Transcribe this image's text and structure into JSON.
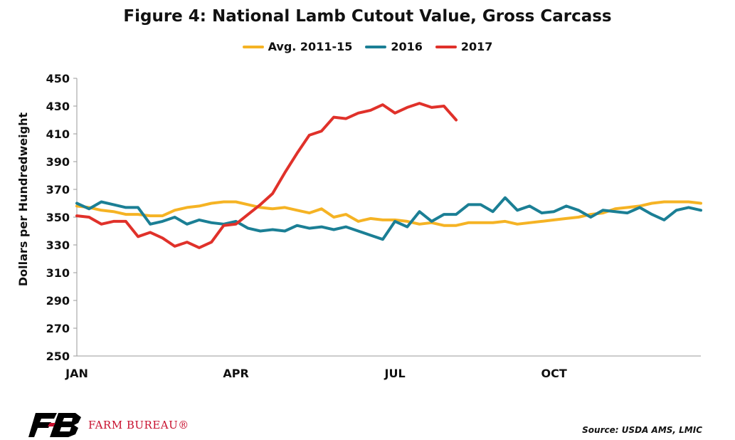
{
  "title": "Figure 4: National Lamb Cutout Value, Gross Carcass",
  "source": "Source: USDA AMS, LMIC",
  "logo": {
    "text": "FARM BUREAU®",
    "mark_color": "#000000",
    "accent_color": "#c8102e"
  },
  "chart_data": {
    "type": "line",
    "title": "Figure 4: National Lamb Cutout Value, Gross Carcass",
    "ylabel": "Dollars per Hundredweight",
    "xlabel": "",
    "ylim": [
      250,
      450
    ],
    "yticks": [
      250,
      270,
      290,
      310,
      330,
      350,
      370,
      390,
      410,
      430,
      450
    ],
    "x_domain": [
      1,
      52
    ],
    "xtick_labels": [
      {
        "label": "JAN",
        "week": 1
      },
      {
        "label": "APR",
        "week": 14
      },
      {
        "label": "JUL",
        "week": 27
      },
      {
        "label": "OCT",
        "week": 40
      }
    ],
    "grid": false,
    "legend_position": "top-center",
    "series": [
      {
        "name": "Avg. 2011-15",
        "color": "#f5b324",
        "x": [
          1,
          2,
          3,
          4,
          5,
          6,
          7,
          8,
          9,
          10,
          11,
          12,
          13,
          14,
          15,
          16,
          17,
          18,
          19,
          20,
          21,
          22,
          23,
          24,
          25,
          26,
          27,
          28,
          29,
          30,
          31,
          32,
          33,
          34,
          35,
          36,
          37,
          38,
          39,
          40,
          41,
          42,
          43,
          44,
          45,
          46,
          47,
          48,
          49,
          50,
          51,
          52
        ],
        "values": [
          358,
          357,
          355,
          354,
          352,
          352,
          351,
          351,
          355,
          357,
          358,
          360,
          361,
          361,
          359,
          357,
          356,
          357,
          355,
          353,
          356,
          350,
          352,
          347,
          349,
          348,
          348,
          347,
          345,
          346,
          344,
          344,
          346,
          346,
          346,
          347,
          345,
          346,
          347,
          348,
          349,
          350,
          352,
          353,
          356,
          357,
          358,
          360,
          361,
          361,
          361,
          360
        ]
      },
      {
        "name": "2016",
        "color": "#1b7f95",
        "x": [
          1,
          2,
          3,
          4,
          5,
          6,
          7,
          8,
          9,
          10,
          11,
          12,
          13,
          14,
          15,
          16,
          17,
          18,
          19,
          20,
          21,
          22,
          23,
          24,
          25,
          26,
          27,
          28,
          29,
          30,
          31,
          32,
          33,
          34,
          35,
          36,
          37,
          38,
          39,
          40,
          41,
          42,
          43,
          44,
          45,
          46,
          47,
          48,
          49,
          50,
          51,
          52
        ],
        "values": [
          360,
          356,
          361,
          359,
          357,
          357,
          345,
          347,
          350,
          345,
          348,
          346,
          345,
          347,
          342,
          340,
          341,
          340,
          344,
          342,
          343,
          341,
          343,
          340,
          337,
          334,
          347,
          343,
          354,
          347,
          352,
          352,
          359,
          359,
          354,
          364,
          355,
          358,
          353,
          354,
          358,
          355,
          350,
          355,
          354,
          353,
          357,
          352,
          348,
          355,
          357,
          355
        ]
      },
      {
        "name": "2017",
        "color": "#e0312a",
        "x": [
          1,
          2,
          3,
          4,
          5,
          6,
          7,
          8,
          9,
          10,
          11,
          12,
          13,
          14,
          15,
          16,
          17,
          18,
          19,
          20,
          21,
          22,
          23,
          24,
          25,
          26,
          27,
          28,
          29,
          30,
          31,
          32
        ],
        "values": [
          351,
          350,
          345,
          347,
          347,
          336,
          339,
          335,
          329,
          332,
          328,
          332,
          344,
          345,
          352,
          359,
          367,
          382,
          396,
          409,
          412,
          422,
          421,
          425,
          427,
          431,
          425,
          429,
          432,
          429,
          430,
          420
        ]
      }
    ]
  }
}
